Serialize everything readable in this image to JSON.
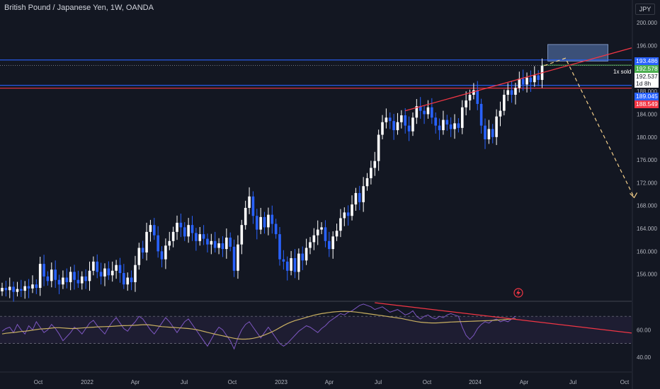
{
  "header": {
    "title": "British Pound / Japanese Yen, 1W, OANDA",
    "currency": "JPY"
  },
  "labels": {
    "order": "1x sold",
    "countdown": "1d 8h"
  },
  "colors": {
    "background": "#131722",
    "bull": "#ffffff",
    "bear": "#2962ff",
    "trendline": "#f23645",
    "hline_blue": "#2962ff",
    "hline_red": "#f23645",
    "target_box": "#5d7fbf",
    "projection": "#f5d08a",
    "rsi_line": "#7e57c2",
    "rsi_ma": "#c9b061"
  },
  "chart_data": [
    {
      "type": "candlestick",
      "panel": "price",
      "ylim": [
        151.5,
        202.5
      ],
      "y_ticks": [
        "200.000",
        "196.000",
        "192.000",
        "188.000",
        "184.000",
        "180.000",
        "176.000",
        "172.000",
        "168.000",
        "164.000",
        "160.000",
        "156.000"
      ],
      "x_ticks": [
        "Oct",
        "2022",
        "Apr",
        "Jul",
        "Oct",
        "2023",
        "Apr",
        "Jul",
        "Oct",
        "2024",
        "Apr",
        "Jul",
        "Oct"
      ],
      "candles": [
        {
          "o": 153.0,
          "c": 153.6
        },
        {
          "o": 153.6,
          "c": 153.2
        },
        {
          "o": 153.2,
          "c": 153.8
        },
        {
          "o": 153.8,
          "c": 152.9
        },
        {
          "o": 152.9,
          "c": 153.4
        },
        {
          "o": 153.4,
          "c": 153.1
        },
        {
          "o": 153.1,
          "c": 153.9
        },
        {
          "o": 153.9,
          "c": 153.5
        },
        {
          "o": 153.5,
          "c": 154.2
        },
        {
          "o": 154.2,
          "c": 153.6
        },
        {
          "o": 153.6,
          "c": 157.8
        },
        {
          "o": 157.8,
          "c": 155.6
        },
        {
          "o": 155.6,
          "c": 154.8
        },
        {
          "o": 154.8,
          "c": 156.8
        },
        {
          "o": 156.8,
          "c": 155.0
        },
        {
          "o": 155.0,
          "c": 154.2
        },
        {
          "o": 154.2,
          "c": 155.4
        },
        {
          "o": 155.4,
          "c": 154.6
        },
        {
          "o": 154.6,
          "c": 156.4
        },
        {
          "o": 156.4,
          "c": 155.0
        },
        {
          "o": 155.0,
          "c": 154.4
        },
        {
          "o": 154.4,
          "c": 155.6
        },
        {
          "o": 155.6,
          "c": 154.8
        },
        {
          "o": 154.8,
          "c": 156.6
        },
        {
          "o": 156.6,
          "c": 158.2
        },
        {
          "o": 158.2,
          "c": 156.4
        },
        {
          "o": 156.4,
          "c": 155.6
        },
        {
          "o": 155.6,
          "c": 157.0
        },
        {
          "o": 157.0,
          "c": 155.8
        },
        {
          "o": 155.8,
          "c": 156.6
        },
        {
          "o": 156.6,
          "c": 157.6
        },
        {
          "o": 157.6,
          "c": 156.2
        },
        {
          "o": 156.2,
          "c": 154.2
        },
        {
          "o": 154.2,
          "c": 155.4
        },
        {
          "o": 155.4,
          "c": 154.6
        },
        {
          "o": 154.6,
          "c": 157.6
        },
        {
          "o": 157.6,
          "c": 160.6
        },
        {
          "o": 160.6,
          "c": 159.8
        },
        {
          "o": 159.8,
          "c": 163.4
        },
        {
          "o": 163.4,
          "c": 164.6
        },
        {
          "o": 164.6,
          "c": 162.8
        },
        {
          "o": 162.8,
          "c": 160.0
        },
        {
          "o": 160.0,
          "c": 158.6
        },
        {
          "o": 158.6,
          "c": 161.0
        },
        {
          "o": 161.0,
          "c": 161.8
        },
        {
          "o": 161.8,
          "c": 163.4
        },
        {
          "o": 163.4,
          "c": 165.0
        },
        {
          "o": 165.0,
          "c": 164.2
        },
        {
          "o": 164.2,
          "c": 162.6
        },
        {
          "o": 162.6,
          "c": 164.6
        },
        {
          "o": 164.6,
          "c": 163.2
        },
        {
          "o": 163.2,
          "c": 161.8
        },
        {
          "o": 161.8,
          "c": 163.0
        },
        {
          "o": 163.0,
          "c": 162.2
        },
        {
          "o": 162.2,
          "c": 161.2
        },
        {
          "o": 161.2,
          "c": 161.8
        },
        {
          "o": 161.8,
          "c": 160.6
        },
        {
          "o": 160.6,
          "c": 161.4
        },
        {
          "o": 161.4,
          "c": 160.4
        },
        {
          "o": 160.4,
          "c": 162.4
        },
        {
          "o": 162.4,
          "c": 160.8
        },
        {
          "o": 160.8,
          "c": 156.6
        },
        {
          "o": 156.6,
          "c": 161.2
        },
        {
          "o": 161.2,
          "c": 164.6
        },
        {
          "o": 164.6,
          "c": 167.6
        },
        {
          "o": 167.6,
          "c": 169.6
        },
        {
          "o": 169.6,
          "c": 166.2
        },
        {
          "o": 166.2,
          "c": 163.8
        },
        {
          "o": 163.8,
          "c": 166.0
        },
        {
          "o": 166.0,
          "c": 164.2
        },
        {
          "o": 164.2,
          "c": 166.4
        },
        {
          "o": 166.4,
          "c": 164.8
        },
        {
          "o": 164.8,
          "c": 163.0
        },
        {
          "o": 163.0,
          "c": 158.6
        },
        {
          "o": 158.6,
          "c": 158.2
        },
        {
          "o": 158.2,
          "c": 156.6
        },
        {
          "o": 156.6,
          "c": 158.8
        },
        {
          "o": 158.8,
          "c": 156.4
        },
        {
          "o": 156.4,
          "c": 159.6
        },
        {
          "o": 159.6,
          "c": 158.4
        },
        {
          "o": 158.4,
          "c": 160.6
        },
        {
          "o": 160.6,
          "c": 161.6
        },
        {
          "o": 161.6,
          "c": 162.8
        },
        {
          "o": 162.8,
          "c": 163.8
        },
        {
          "o": 163.8,
          "c": 164.2
        },
        {
          "o": 164.2,
          "c": 161.8
        },
        {
          "o": 161.8,
          "c": 160.4
        },
        {
          "o": 160.4,
          "c": 162.6
        },
        {
          "o": 162.6,
          "c": 163.6
        },
        {
          "o": 163.6,
          "c": 165.8
        },
        {
          "o": 165.8,
          "c": 166.8
        },
        {
          "o": 166.8,
          "c": 166.2
        },
        {
          "o": 166.2,
          "c": 168.2
        },
        {
          "o": 168.2,
          "c": 170.2
        },
        {
          "o": 170.2,
          "c": 168.6
        },
        {
          "o": 168.6,
          "c": 171.4
        },
        {
          "o": 171.4,
          "c": 172.8
        },
        {
          "o": 172.8,
          "c": 174.6
        },
        {
          "o": 174.6,
          "c": 175.8
        },
        {
          "o": 175.8,
          "c": 180.4
        },
        {
          "o": 180.4,
          "c": 182.6
        },
        {
          "o": 182.6,
          "c": 183.4
        },
        {
          "o": 183.4,
          "c": 182.8
        },
        {
          "o": 182.8,
          "c": 181.2
        },
        {
          "o": 181.2,
          "c": 182.6
        },
        {
          "o": 182.6,
          "c": 183.8
        },
        {
          "o": 183.8,
          "c": 182.0
        },
        {
          "o": 182.0,
          "c": 181.0
        },
        {
          "o": 181.0,
          "c": 183.4
        },
        {
          "o": 183.4,
          "c": 185.4
        },
        {
          "o": 185.4,
          "c": 184.6
        },
        {
          "o": 184.6,
          "c": 184.0
        },
        {
          "o": 184.0,
          "c": 185.2
        },
        {
          "o": 185.2,
          "c": 183.4
        },
        {
          "o": 183.4,
          "c": 182.0
        },
        {
          "o": 182.0,
          "c": 181.2
        },
        {
          "o": 181.2,
          "c": 183.0
        },
        {
          "o": 183.0,
          "c": 182.2
        },
        {
          "o": 182.2,
          "c": 181.4
        },
        {
          "o": 181.4,
          "c": 182.4
        },
        {
          "o": 182.4,
          "c": 181.6
        },
        {
          "o": 181.6,
          "c": 185.2
        },
        {
          "o": 185.2,
          "c": 186.4
        },
        {
          "o": 186.4,
          "c": 187.4
        },
        {
          "o": 187.4,
          "c": 188.2
        },
        {
          "o": 188.2,
          "c": 185.8
        },
        {
          "o": 185.8,
          "c": 182.0
        },
        {
          "o": 182.0,
          "c": 179.6
        },
        {
          "o": 179.6,
          "c": 181.4
        },
        {
          "o": 181.4,
          "c": 180.0
        },
        {
          "o": 180.0,
          "c": 183.6
        },
        {
          "o": 183.6,
          "c": 184.6
        },
        {
          "o": 184.6,
          "c": 187.4
        },
        {
          "o": 187.4,
          "c": 188.2
        },
        {
          "o": 188.2,
          "c": 187.4
        },
        {
          "o": 187.4,
          "c": 188.6
        },
        {
          "o": 188.6,
          "c": 190.2
        },
        {
          "o": 190.2,
          "c": 189.2
        },
        {
          "o": 189.2,
          "c": 190.4
        },
        {
          "o": 190.4,
          "c": 189.6
        },
        {
          "o": 189.6,
          "c": 190.8
        },
        {
          "o": 190.8,
          "c": 190.0
        },
        {
          "o": 190.0,
          "c": 192.5
        }
      ],
      "hlines": [
        193.486,
        192.578,
        192.537,
        189.045,
        188.549
      ],
      "price_labels": [
        "193.486",
        "192.578",
        "192.537",
        "189.045",
        "188.549"
      ],
      "trendline": {
        "from": [
          184.6,
          184.6
        ],
        "to": [
          195.6,
          195.6
        ]
      },
      "projection": {
        "from": 192.5,
        "peak": 193.8,
        "to": 169.4
      },
      "target_zone": [
        193.3,
        196.2
      ]
    },
    {
      "type": "line",
      "panel": "RSI",
      "ylim": [
        30,
        80
      ],
      "y_ticks": [
        "60.00",
        "40.00"
      ],
      "bands": [
        70,
        50
      ],
      "series": [
        {
          "values": [
            59,
            61,
            62,
            58,
            64,
            60,
            57,
            63,
            60,
            66,
            62,
            58,
            60,
            64,
            61,
            57,
            52,
            55,
            58,
            62,
            60,
            57,
            61,
            65,
            67,
            63,
            60,
            57,
            62,
            66,
            69,
            65,
            61,
            59,
            63,
            66,
            70,
            68,
            64,
            60,
            57,
            61,
            65,
            69,
            66,
            62,
            58,
            62,
            66,
            68,
            64,
            60,
            56,
            52,
            48,
            53,
            58,
            62,
            60,
            56,
            52,
            46,
            54,
            60,
            64,
            66,
            62,
            58,
            54,
            58,
            62,
            58,
            54,
            50,
            48,
            50,
            53,
            56,
            59,
            61,
            63,
            62,
            60,
            58,
            61,
            63,
            66,
            68,
            70,
            72,
            71,
            73,
            74,
            76,
            78,
            79,
            78,
            77,
            75,
            76,
            77,
            75,
            73,
            74,
            75,
            73,
            71,
            72,
            74,
            70,
            68,
            70,
            71,
            69,
            68,
            70,
            69,
            71,
            72,
            71,
            70,
            62,
            56,
            53,
            56,
            61,
            64,
            66,
            65,
            67,
            68,
            66,
            67,
            66,
            68,
            70
          ]
        },
        {
          "values": [
            57,
            57.5,
            57.8,
            58,
            58.4,
            58.8,
            59,
            59.4,
            59.8,
            60.2,
            60.6,
            60.8,
            61,
            61.3,
            61.6,
            61.6,
            61.4,
            61.2,
            61,
            61,
            61.2,
            61.4,
            61.6,
            61.8,
            62,
            62.2,
            62.3,
            62.4,
            62.5,
            62.6,
            62.8,
            63,
            63.1,
            63.2,
            63.3,
            63.4,
            63.6,
            63.8,
            63.8,
            63.6,
            63.2,
            62.8,
            62.4,
            62.2,
            62,
            61.8,
            61.6,
            61.4,
            61.2,
            61,
            60.6,
            60.2,
            59.6,
            58.9,
            58.2,
            57.5,
            56.8,
            56.2,
            55.6,
            55,
            54.4,
            53.8,
            53.4,
            53.2,
            53.2,
            53.4,
            53.8,
            54.4,
            55.2,
            56.2,
            57.4,
            58.6,
            60,
            61.6,
            63.2,
            64.6,
            65.8,
            66.8,
            67.6,
            68.4,
            69.2,
            70,
            70.8,
            71.4,
            72,
            72.4,
            72.8,
            73.2,
            73.4,
            73.6,
            73.7,
            73.6,
            73.4,
            73.1,
            72.8,
            72.4,
            72,
            71.6,
            71.2,
            70.8,
            70.4,
            70,
            69.6,
            69.2,
            68.8,
            68.4,
            67.8,
            67.2,
            66.6,
            66.1,
            65.7,
            65.4,
            65.2,
            65.1,
            65.1,
            65.2,
            65.4,
            65.6,
            65.8,
            65.9,
            66,
            66.1,
            66.2,
            66.3,
            66.4,
            66.5,
            66.6,
            66.7,
            66.8,
            67,
            67.2,
            67.4,
            67.6,
            67.8,
            68,
            68.2
          ]
        }
      ],
      "trendline": {
        "from": 80,
        "to": 66
      }
    }
  ]
}
